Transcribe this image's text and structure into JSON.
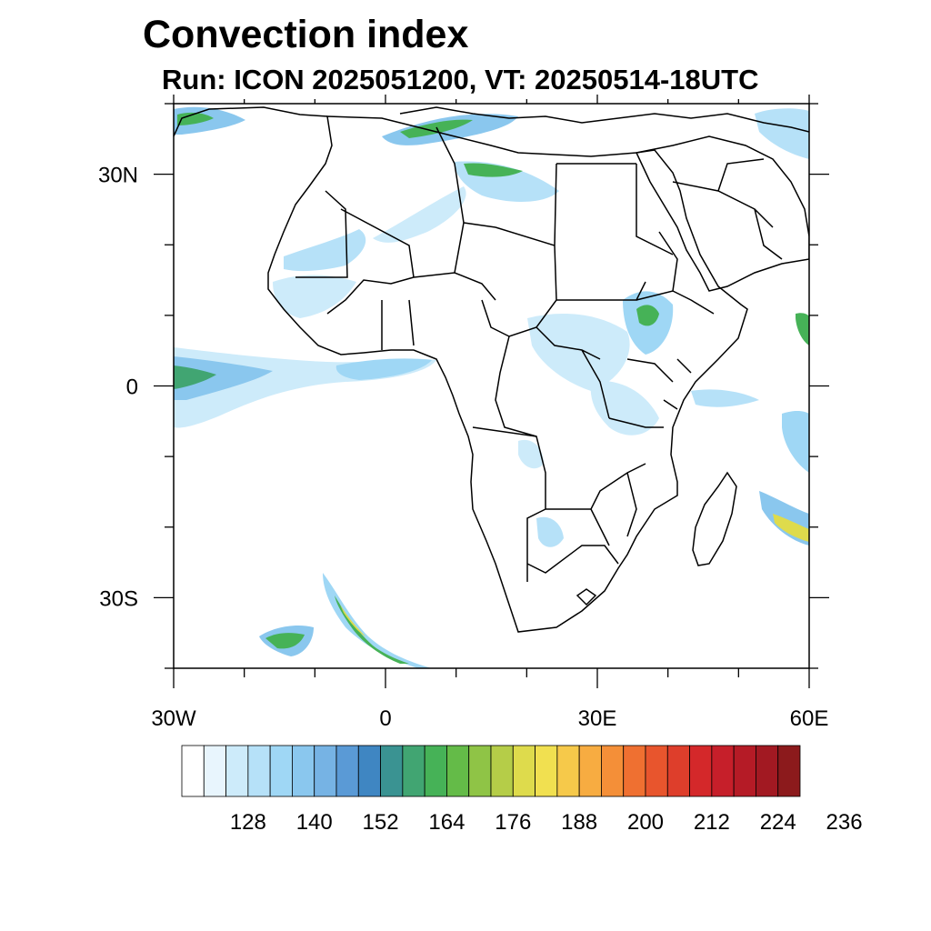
{
  "title": "Convection index",
  "subtitle": "Run: ICON 2025051200,  VT: 20250514-18UTC",
  "map": {
    "lon_range": [
      -30,
      60
    ],
    "lat_range": [
      -40,
      40
    ],
    "x_ticks": [
      {
        "lon": -30,
        "label": "30W"
      },
      {
        "lon": 0,
        "label": "0"
      },
      {
        "lon": 30,
        "label": "30E"
      },
      {
        "lon": 60,
        "label": "60E"
      }
    ],
    "y_ticks": [
      {
        "lat": 30,
        "label": "30N"
      },
      {
        "lat": 0,
        "label": "0"
      },
      {
        "lat": -30,
        "label": "30S"
      }
    ]
  },
  "colorbar": {
    "labels": [
      "128",
      "140",
      "152",
      "164",
      "176",
      "188",
      "200",
      "212",
      "224",
      "236"
    ],
    "colors": [
      "#ffffff",
      "#e8f5fd",
      "#cdebfa",
      "#b6e1f8",
      "#9fd7f5",
      "#8ac7ee",
      "#76b3e4",
      "#5a9ad6",
      "#3f86c2",
      "#3a9392",
      "#41a572",
      "#46b257",
      "#64bb48",
      "#8fc446",
      "#b5cd48",
      "#dedb4c",
      "#f1e050",
      "#f6c94a",
      "#f7ac41",
      "#f48f38",
      "#ef7031",
      "#e8552d",
      "#de3e2b",
      "#d4282a",
      "#c61f2a",
      "#b51b26",
      "#a21922",
      "#8c1a1c"
    ]
  }
}
